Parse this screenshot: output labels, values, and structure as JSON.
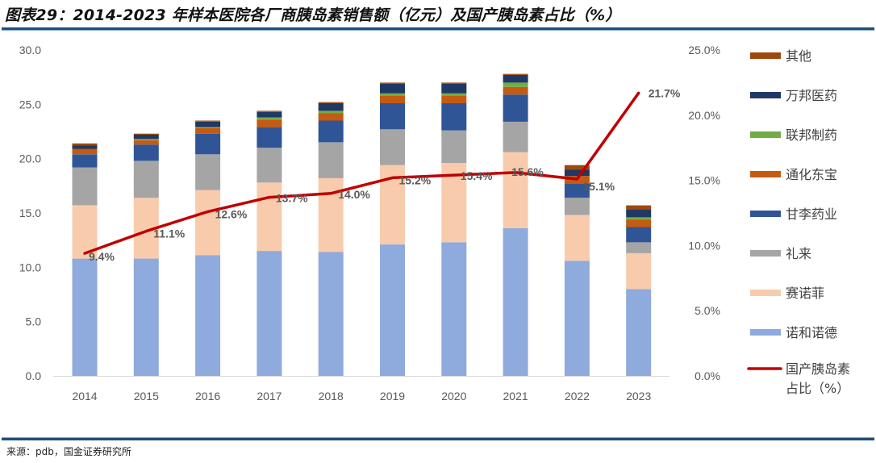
{
  "title": "图表29：2014-2023 年样本医院各厂商胰岛素销售额（亿元）及国产胰岛素占比（%）",
  "source": "来源：pdb，国金证券研究所",
  "chart_data": {
    "type": "bar",
    "stacked": true,
    "title": "2014-2023 年样本医院各厂商胰岛素销售额（亿元）及国产胰岛素占比（%）",
    "categories": [
      "2014",
      "2015",
      "2016",
      "2017",
      "2018",
      "2019",
      "2020",
      "2021",
      "2022",
      "2023"
    ],
    "ylim": [
      0,
      30
    ],
    "y_ticks": [
      "0.0",
      "5.0",
      "10.0",
      "15.0",
      "20.0",
      "25.0",
      "30.0"
    ],
    "y2lim": [
      0,
      25
    ],
    "y2_ticks": [
      "0.0%",
      "5.0%",
      "10.0%",
      "15.0%",
      "20.0%",
      "25.0%"
    ],
    "grid": false,
    "legend_position": "right",
    "series": [
      {
        "name": "诺和诺德",
        "color": "#8faadc",
        "values": [
          10.8,
          10.8,
          11.1,
          11.5,
          11.4,
          12.1,
          12.3,
          13.6,
          10.6,
          8.0
        ]
      },
      {
        "name": "赛诺菲",
        "color": "#f8cbad",
        "values": [
          4.9,
          5.6,
          6.0,
          6.3,
          6.8,
          7.3,
          7.3,
          7.0,
          4.2,
          3.3
        ]
      },
      {
        "name": "礼来",
        "color": "#a5a5a5",
        "values": [
          3.5,
          3.4,
          3.3,
          3.2,
          3.3,
          3.3,
          3.0,
          2.8,
          1.6,
          1.0
        ]
      },
      {
        "name": "甘李药业",
        "color": "#2f5597",
        "values": [
          1.2,
          1.5,
          1.9,
          1.9,
          2.0,
          2.4,
          2.5,
          2.5,
          1.3,
          1.4
        ]
      },
      {
        "name": "通化东宝",
        "color": "#c55a11",
        "values": [
          0.5,
          0.4,
          0.5,
          0.7,
          0.7,
          0.7,
          0.7,
          0.7,
          0.7,
          0.7
        ]
      },
      {
        "name": "联邦制药",
        "color": "#70ad47",
        "values": [
          0.0,
          0.1,
          0.1,
          0.2,
          0.2,
          0.2,
          0.2,
          0.4,
          0.0,
          0.2
        ]
      },
      {
        "name": "万邦医药",
        "color": "#203864",
        "values": [
          0.3,
          0.4,
          0.5,
          0.5,
          0.7,
          0.9,
          0.9,
          0.7,
          0.6,
          0.7
        ]
      },
      {
        "name": "其他",
        "color": "#9e480e",
        "values": [
          0.2,
          0.1,
          0.1,
          0.1,
          0.1,
          0.1,
          0.1,
          0.1,
          0.4,
          0.4
        ]
      }
    ],
    "line_series": {
      "name": "国产胰岛素占比（%）",
      "legend_lines": [
        "国产胰岛素",
        "占比（%）"
      ],
      "color": "#c00000",
      "axis": "right",
      "values": [
        9.4,
        11.1,
        12.6,
        13.7,
        14.0,
        15.2,
        15.4,
        15.6,
        15.1,
        21.7
      ],
      "labels": [
        "9.4%",
        "11.1%",
        "12.6%",
        "13.7%",
        "14.0%",
        "15.2%",
        "15.4%",
        "15.6%",
        "15.1%",
        "21.7%"
      ]
    }
  }
}
